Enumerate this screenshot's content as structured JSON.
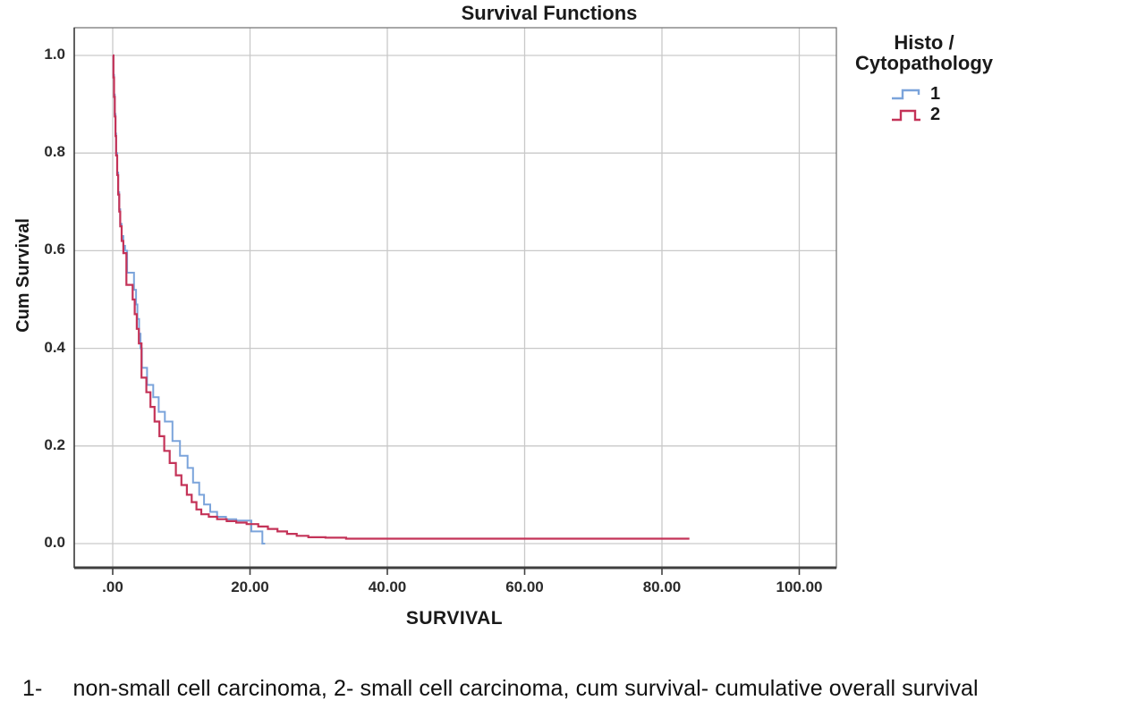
{
  "figure": {
    "title": "Survival Functions",
    "x_axis_label": "SURVIVAL",
    "y_axis_label": "Cum Survival",
    "caption_marker": "1-",
    "caption_text": "non-small cell carcinoma, 2- small cell carcinoma, cum survival- cumulative overall survival"
  },
  "legend": {
    "title_line1": "Histo /",
    "title_line2": "Cytopathology",
    "entries": [
      {
        "label": "1",
        "color": "#7BA4DB"
      },
      {
        "label": "2",
        "color": "#C43358"
      }
    ]
  },
  "colors": {
    "series1_blue": "#7BA4DB",
    "series2_red": "#C43358",
    "gridline": "#C9C9C9",
    "frame": "#6E6E6E",
    "axis": "#3F3F3F",
    "text": "#1A1A1A"
  },
  "chart_data": {
    "type": "line",
    "subtype": "kaplan-meier-step",
    "title": "Survival Functions",
    "xlabel": "SURVIVAL",
    "ylabel": "Cum Survival",
    "xlim": [
      -5.6,
      105.4
    ],
    "ylim": [
      -0.05,
      1.06
    ],
    "grid": true,
    "legend_position": "right",
    "legend_title": "Histo / Cytopathology",
    "xticks": {
      "values": [
        0,
        20,
        40,
        60,
        80,
        100
      ],
      "labels": [
        ".00",
        "20.00",
        "40.00",
        "60.00",
        "80.00",
        "100.00"
      ]
    },
    "yticks": {
      "values": [
        0,
        0.2,
        0.4,
        0.6,
        0.8,
        1.0
      ],
      "labels": [
        "0.0",
        "0.2",
        "0.4",
        "0.6",
        "0.8",
        "1.0"
      ]
    },
    "series": [
      {
        "name": "1",
        "color": "#7BA4DB",
        "end_x": 22.2,
        "points": [
          [
            0,
            1.0
          ],
          [
            0.1,
            0.96
          ],
          [
            0.2,
            0.92
          ],
          [
            0.3,
            0.88
          ],
          [
            0.4,
            0.84
          ],
          [
            0.5,
            0.8
          ],
          [
            0.65,
            0.76
          ],
          [
            0.8,
            0.72
          ],
          [
            0.95,
            0.685
          ],
          [
            1.1,
            0.655
          ],
          [
            1.3,
            0.63
          ],
          [
            1.55,
            0.61
          ],
          [
            1.8,
            0.6
          ],
          [
            2.1,
            0.555
          ],
          [
            3.1,
            0.52
          ],
          [
            3.4,
            0.49
          ],
          [
            3.6,
            0.46
          ],
          [
            3.85,
            0.43
          ],
          [
            4.05,
            0.4
          ],
          [
            4.25,
            0.36
          ],
          [
            5.0,
            0.325
          ],
          [
            5.9,
            0.3
          ],
          [
            6.7,
            0.27
          ],
          [
            7.6,
            0.25
          ],
          [
            8.7,
            0.21
          ],
          [
            9.8,
            0.18
          ],
          [
            10.9,
            0.155
          ],
          [
            11.7,
            0.125
          ],
          [
            12.6,
            0.1
          ],
          [
            13.3,
            0.08
          ],
          [
            14.2,
            0.065
          ],
          [
            15.2,
            0.055
          ],
          [
            16.5,
            0.05
          ],
          [
            18.0,
            0.047
          ],
          [
            20.2,
            0.025
          ],
          [
            21.8,
            0.0
          ]
        ]
      },
      {
        "name": "2",
        "color": "#C43358",
        "end_x": 84.0,
        "points": [
          [
            0,
            1.0
          ],
          [
            0.1,
            0.955
          ],
          [
            0.2,
            0.915
          ],
          [
            0.3,
            0.875
          ],
          [
            0.4,
            0.835
          ],
          [
            0.5,
            0.795
          ],
          [
            0.65,
            0.755
          ],
          [
            0.8,
            0.715
          ],
          [
            0.95,
            0.68
          ],
          [
            1.1,
            0.65
          ],
          [
            1.3,
            0.62
          ],
          [
            1.55,
            0.595
          ],
          [
            2.0,
            0.53
          ],
          [
            2.9,
            0.5
          ],
          [
            3.2,
            0.47
          ],
          [
            3.5,
            0.44
          ],
          [
            3.8,
            0.41
          ],
          [
            4.2,
            0.34
          ],
          [
            4.9,
            0.31
          ],
          [
            5.5,
            0.28
          ],
          [
            6.1,
            0.25
          ],
          [
            6.8,
            0.22
          ],
          [
            7.5,
            0.19
          ],
          [
            8.3,
            0.165
          ],
          [
            9.2,
            0.14
          ],
          [
            10.0,
            0.12
          ],
          [
            10.8,
            0.1
          ],
          [
            11.5,
            0.085
          ],
          [
            12.2,
            0.07
          ],
          [
            12.9,
            0.06
          ],
          [
            14.0,
            0.055
          ],
          [
            15.2,
            0.05
          ],
          [
            16.6,
            0.046
          ],
          [
            18.0,
            0.043
          ],
          [
            19.5,
            0.04
          ],
          [
            21.2,
            0.035
          ],
          [
            22.6,
            0.03
          ],
          [
            24.0,
            0.025
          ],
          [
            25.4,
            0.02
          ],
          [
            26.8,
            0.016
          ],
          [
            28.5,
            0.013
          ],
          [
            31.0,
            0.012
          ],
          [
            34.0,
            0.01
          ]
        ]
      }
    ]
  }
}
